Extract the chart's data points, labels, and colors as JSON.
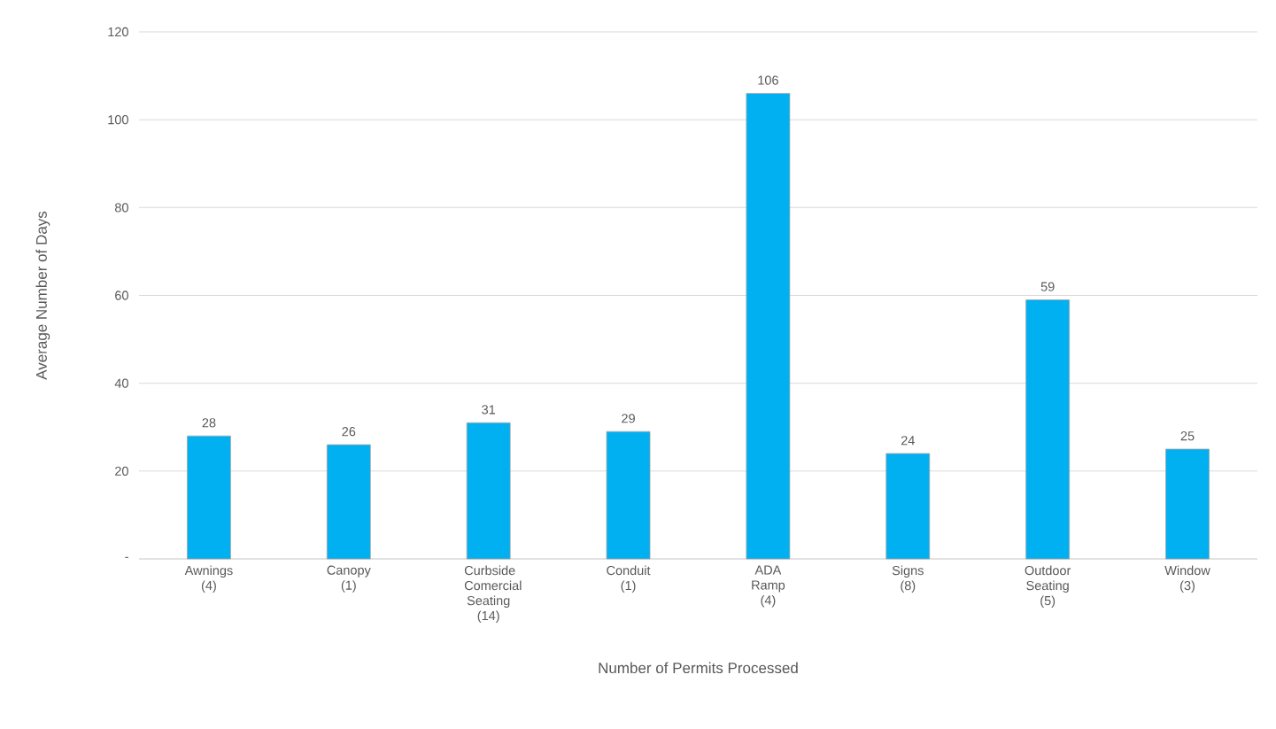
{
  "chart_data": {
    "type": "bar",
    "xlabel": "Number of Permits Processed",
    "ylabel": "Average Number of Days",
    "categories": [
      "Awnings (4)",
      "Canopy (1)",
      "Curbside Comercial Seating (14)",
      "Conduit (1)",
      "ADA Ramp (4)",
      "Signs (8)",
      "Outdoor Seating (5)",
      "Window (3)"
    ],
    "values": [
      28,
      26,
      31,
      29,
      106,
      24,
      59,
      25
    ],
    "color": "#00b0f0",
    "ylim": [
      0,
      120
    ],
    "yticks": [
      {
        "value": 0,
        "label": "-"
      },
      20,
      40,
      60,
      80,
      100,
      120
    ],
    "grid": "y",
    "data_labels": true
  }
}
